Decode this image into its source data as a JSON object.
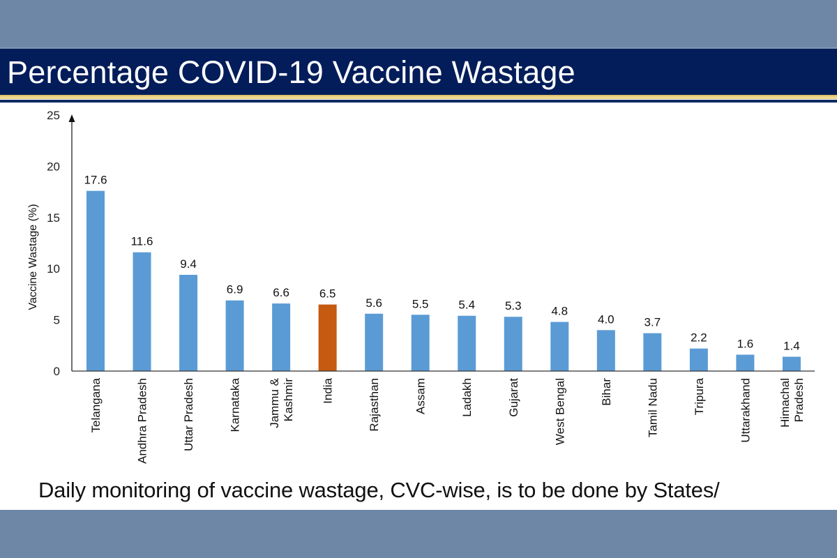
{
  "header": {
    "title": "Percentage COVID-19 Vaccine Wastage"
  },
  "footnote": "Daily monitoring of vaccine wastage, CVC-wise, is to be done by States/",
  "colors": {
    "background": "#6e87a6",
    "title_band": "#031d5a",
    "bar_default": "#5b9bd5",
    "bar_highlight": "#c55a11",
    "axis": "#222222"
  },
  "chart_data": {
    "type": "bar",
    "title": "Percentage COVID-19 Vaccine Wastage",
    "xlabel": "",
    "ylabel": "Vaccine Wastage (%)",
    "ylim": [
      0,
      25
    ],
    "yticks": [
      0,
      5,
      10,
      15,
      20,
      25
    ],
    "grid": false,
    "legend": "none",
    "categories": [
      [
        "Telangana"
      ],
      [
        "Andhra Pradesh"
      ],
      [
        "Uttar Pradesh"
      ],
      [
        "Karnataka"
      ],
      [
        "Jammu &",
        "Kashmir"
      ],
      [
        "India"
      ],
      [
        "Rajasthan"
      ],
      [
        "Assam"
      ],
      [
        "Ladakh"
      ],
      [
        "Gujarat"
      ],
      [
        "West Bengal"
      ],
      [
        "Bihar"
      ],
      [
        "Tamil Nadu"
      ],
      [
        "Tripura"
      ],
      [
        "Uttarakhand"
      ],
      [
        "Himachal",
        "Pradesh"
      ]
    ],
    "values": [
      17.6,
      11.6,
      9.4,
      6.9,
      6.6,
      6.5,
      5.6,
      5.5,
      5.4,
      5.3,
      4.8,
      4.0,
      3.7,
      2.2,
      1.6,
      1.4
    ],
    "value_labels": [
      "17.6",
      "11.6",
      "9.4",
      "6.9",
      "6.6",
      "6.5",
      "5.6",
      "5.5",
      "5.4",
      "5.3",
      "4.8",
      "4.0",
      "3.7",
      "2.2",
      "1.6",
      "1.4"
    ],
    "highlight_category": "India"
  }
}
